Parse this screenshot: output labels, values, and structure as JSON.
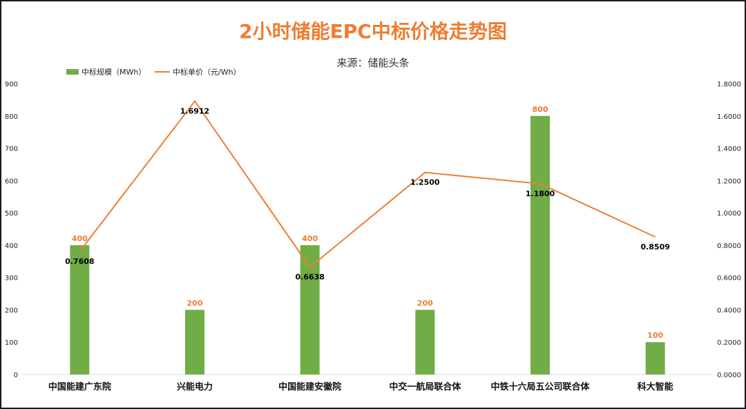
{
  "chart_data": {
    "type": "bar",
    "title": "2小时储能EPC中标价格走势图",
    "subtitle": "来源：储能头条",
    "categories": [
      "中国能建广东院",
      "兴能电力",
      "中国能建安徽院",
      "中交一航局联合体",
      "中铁十六局五公司联合体",
      "科大智能"
    ],
    "series": [
      {
        "name": "中标规模（MWh）",
        "type": "bar",
        "axis": "left",
        "color": "#70ad47",
        "values": [
          400,
          200,
          400,
          200,
          800,
          100
        ],
        "labels": [
          "400",
          "200",
          "400",
          "200",
          "800",
          "100"
        ]
      },
      {
        "name": "中标单价（元/Wh）",
        "type": "line",
        "axis": "right",
        "color": "#ed7d31",
        "values": [
          0.7608,
          1.6912,
          0.6638,
          1.25,
          1.18,
          0.8509
        ],
        "labels": [
          "0.7608",
          "1.6912",
          "0.6638",
          "1.2500",
          "1.1800",
          "0.8509"
        ]
      }
    ],
    "y_left": {
      "min": 0,
      "max": 900,
      "step": 100,
      "ticks": [
        "0",
        "100",
        "200",
        "300",
        "400",
        "500",
        "600",
        "700",
        "800",
        "900"
      ]
    },
    "y_right": {
      "min": 0,
      "max": 1.8,
      "step": 0.2,
      "ticks": [
        "0.0000",
        "0.2000",
        "0.4000",
        "0.6000",
        "0.8000",
        "1.0000",
        "1.2000",
        "1.4000",
        "1.6000",
        "1.8000"
      ]
    },
    "legend_position": "top-left",
    "grid": false
  }
}
